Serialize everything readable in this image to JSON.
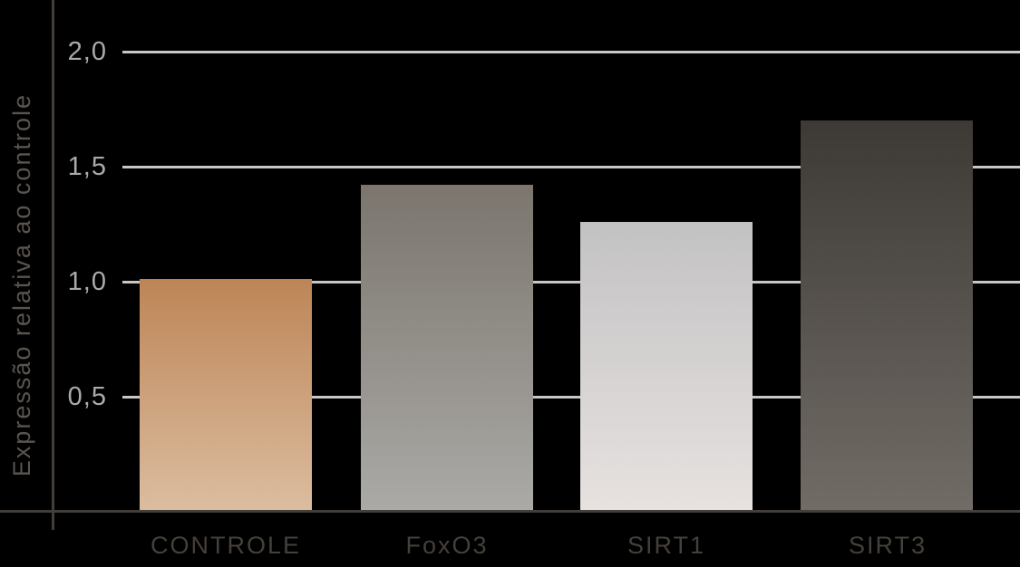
{
  "chart_data": {
    "type": "bar",
    "title": "",
    "xlabel": "",
    "ylabel": "Expressão relativa ao controle",
    "categories": [
      "CONTROLE",
      "FoxO3",
      "SIRT1",
      "SIRT3"
    ],
    "values": [
      1.01,
      1.42,
      1.26,
      1.7
    ],
    "yticks": [
      {
        "label": "2,0",
        "value": 2.0
      },
      {
        "label": "1,5",
        "value": 1.5
      },
      {
        "label": "1,0",
        "value": 1.0
      },
      {
        "label": "0,5",
        "value": 0.5
      }
    ],
    "ylim": [
      0,
      2.2
    ],
    "grid": true,
    "legend_position": "none",
    "background_color": "#000000",
    "bar_gradients": [
      {
        "top": "#bd8557",
        "bottom": "#dcbda0"
      },
      {
        "top": "#7b756e",
        "bottom": "#abaaa6"
      },
      {
        "top": "#c3c2c3",
        "bottom": "#e7e2e0"
      },
      {
        "top": "#3d3935",
        "bottom": "#716c66"
      }
    ],
    "colors": {
      "axis": "#443e3a",
      "gridline": "#c9c7c5",
      "tick_label": "#acaaa8",
      "x_label": "#454039",
      "y_axis_label": "#5a544f"
    }
  }
}
